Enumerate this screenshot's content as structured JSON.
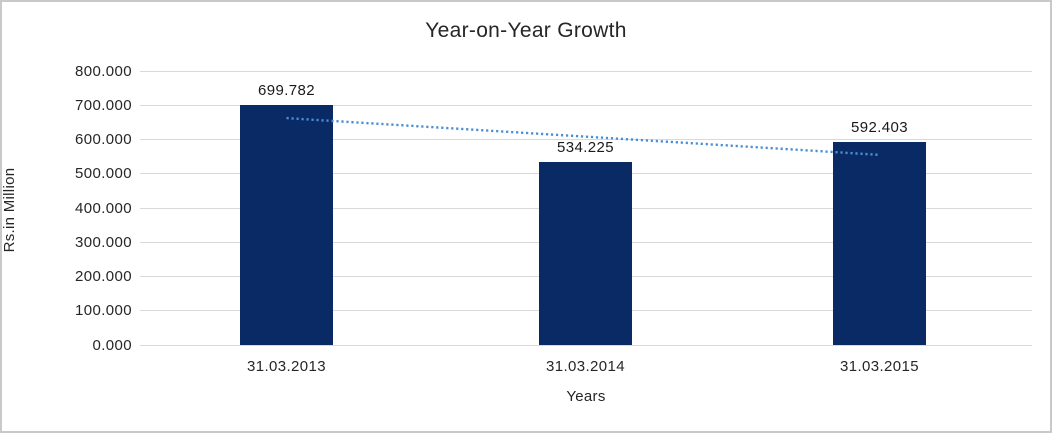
{
  "chart_data": {
    "type": "bar",
    "title": "Year-on-Year Growth",
    "xlabel": "Years",
    "ylabel": "Rs.in Million",
    "categories": [
      "31.03.2013",
      "31.03.2014",
      "31.03.2015"
    ],
    "values": [
      699.782,
      534.225,
      592.403
    ],
    "value_labels": [
      "699.782",
      "534.225",
      "592.403"
    ],
    "y_ticks": [
      "0.000",
      "100.000",
      "200.000",
      "300.000",
      "400.000",
      "500.000",
      "600.000",
      "700.000",
      "800.000"
    ],
    "ylim": [
      0,
      800
    ],
    "y_step": 100,
    "grid": true,
    "legend": "none",
    "colors": {
      "bar": "#0a2a66",
      "trendline": "#4a8fd3",
      "gridline": "#d9d9d9",
      "text": "#262626",
      "frame_border": "#c9c9c9",
      "background": "#ffffff"
    },
    "trendline": {
      "type": "linear",
      "style": "dotted",
      "start_value": 662.5,
      "end_value": 555.1
    }
  }
}
